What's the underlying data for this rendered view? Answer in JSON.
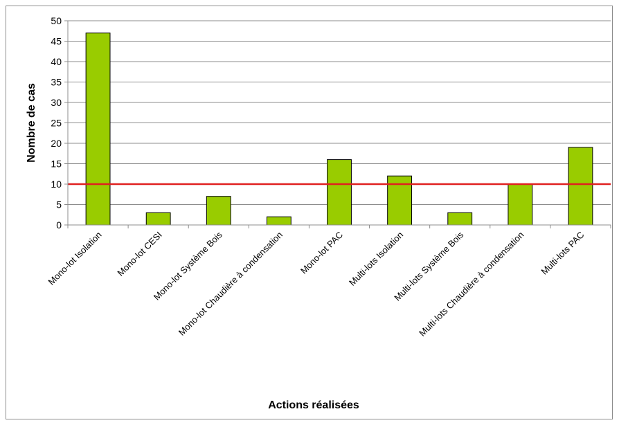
{
  "chart_data": {
    "type": "bar",
    "categories": [
      "Mono-lot Isolation",
      "Mono-lot CESI",
      "Mono-lot Système Bois",
      "Mono-lot Chaudière à condensation",
      "Mono-lot PAC",
      "Multi-lots Isolation",
      "Multi-lots Système Bois",
      "Multi-lots Chaudière à condensation",
      "Multi-lots PAC"
    ],
    "values": [
      47,
      3,
      7,
      2,
      16,
      12,
      3,
      10,
      19
    ],
    "xlabel": "Actions réalisées",
    "ylabel": "Nombre de cas",
    "ylim": [
      0,
      50
    ],
    "yticks": [
      0,
      5,
      10,
      15,
      20,
      25,
      30,
      35,
      40,
      45,
      50
    ],
    "grid": true,
    "legend": "none",
    "reference_line": 10,
    "colors": {
      "bar_fill": "#99cc00",
      "bar_stroke": "#000000",
      "reference_line": "#e02020",
      "grid": "#8c8c8c"
    }
  }
}
